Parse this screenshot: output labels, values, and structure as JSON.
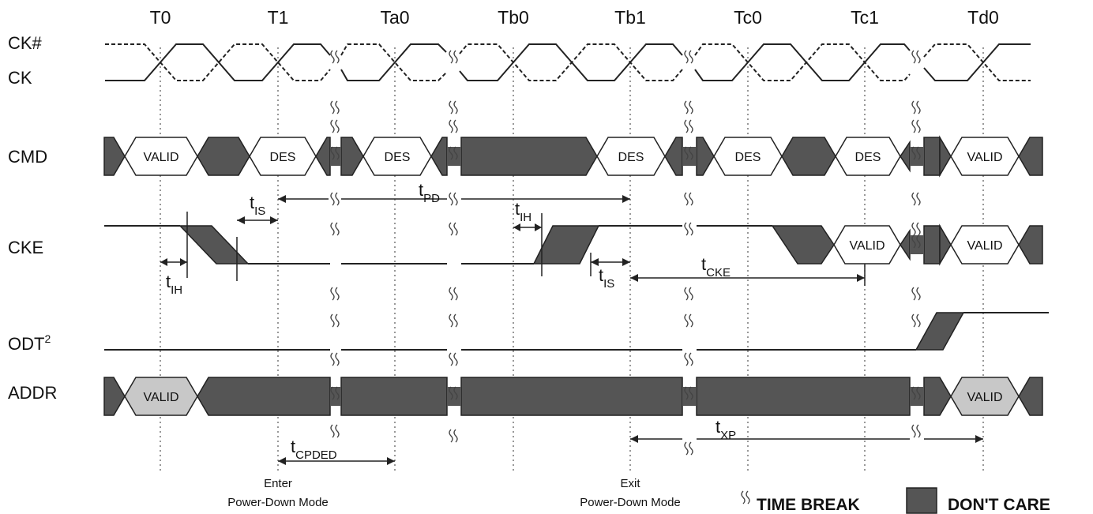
{
  "time_labels": [
    "T0",
    "T1",
    "Ta0",
    "Tb0",
    "Tb1",
    "Tc0",
    "Tc1",
    "Td0"
  ],
  "signals": {
    "ck_n": "CK#",
    "ck": "CK",
    "cmd": "CMD",
    "cke": "CKE",
    "odt": "ODT",
    "odt_sup": "2",
    "addr": "ADDR"
  },
  "boxes": {
    "valid": "VALID",
    "des": "DES"
  },
  "timings": {
    "t": "t",
    "is": "IS",
    "pd": "PD",
    "ih": "IH",
    "cke": "CKE",
    "cpded": "CPDED",
    "xp": "XP"
  },
  "notes": {
    "enter_line1": "Enter",
    "enter_line2": "Power-Down Mode",
    "exit_line1": "Exit",
    "exit_line2": "Power-Down Mode"
  },
  "legend": {
    "time_break": "TIME BREAK",
    "dont_care": "DON'T CARE"
  },
  "colors": {
    "dont_care_fill": "#555555",
    "valid_addr_fill": "#c8c8c8"
  }
}
